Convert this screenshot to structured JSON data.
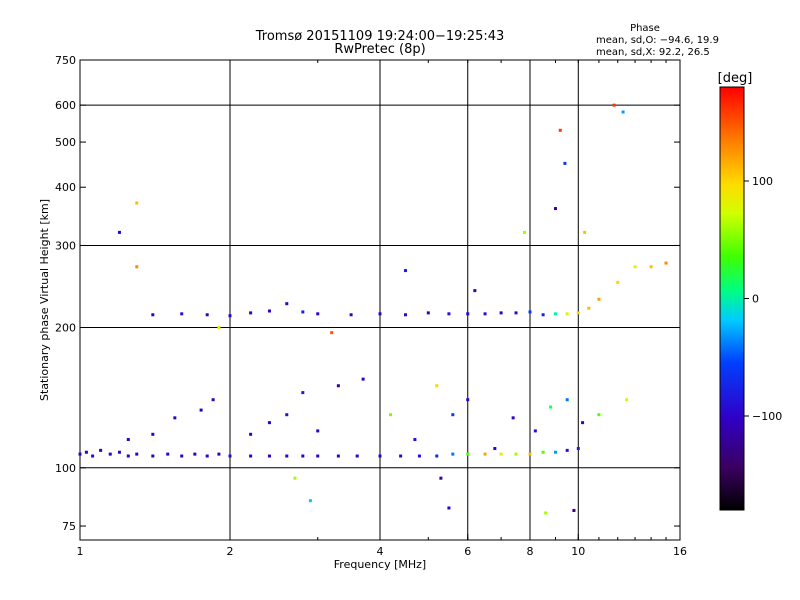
{
  "chart_data": {
    "type": "scatter",
    "title_line1": "Tromsø 20151109 19:24:00−19:25:43",
    "title_line2": "RwPretec (8p)",
    "xlabel": "Frequency [MHz]",
    "ylabel": "Stationary phase Virtual Height [km]",
    "x_scale": "log",
    "y_scale": "log",
    "xlim": [
      1,
      16
    ],
    "ylim": [
      70,
      750
    ],
    "x_ticks": [
      1,
      2,
      4,
      6,
      8,
      10,
      16
    ],
    "x_tick_labels": [
      "1",
      "2",
      "4",
      "6",
      "8",
      "10",
      "16"
    ],
    "x_grid": [
      2,
      4,
      6,
      8,
      10
    ],
    "y_ticks": [
      75,
      100,
      200,
      300,
      400,
      500,
      600,
      750
    ],
    "y_tick_labels": [
      "75",
      "100",
      "200",
      "300",
      "400",
      "500",
      "600",
      "750"
    ],
    "y_grid": [
      100,
      200,
      300,
      600
    ],
    "grid": true,
    "phase_info": {
      "heading": "Phase",
      "line_o": "mean, sd,O: −94.6, 19.9",
      "line_x": "mean, sd,X:  92.2, 26.5"
    },
    "colorbar": {
      "label": "[deg]",
      "range": [
        -180,
        180
      ],
      "ticks": [
        100,
        0,
        -100
      ],
      "tick_labels": [
        "100",
        "0",
        "−100"
      ]
    },
    "series": [
      {
        "description": "E-layer trace",
        "points": [
          [
            1.0,
            107,
            -100
          ],
          [
            1.03,
            108,
            -105
          ],
          [
            1.06,
            106,
            -95
          ],
          [
            1.1,
            109,
            -110
          ],
          [
            1.15,
            107,
            -100
          ],
          [
            1.2,
            108,
            -98
          ],
          [
            1.25,
            106,
            -102
          ],
          [
            1.3,
            107,
            -100
          ],
          [
            1.4,
            106,
            -105
          ],
          [
            1.5,
            107,
            -100
          ],
          [
            1.6,
            106,
            -98
          ],
          [
            1.7,
            107,
            -102
          ],
          [
            1.8,
            106,
            -100
          ],
          [
            1.9,
            107,
            -100
          ],
          [
            2.0,
            106,
            -95
          ],
          [
            2.2,
            106,
            -100
          ],
          [
            2.4,
            106,
            -102
          ],
          [
            2.6,
            106,
            -98
          ],
          [
            2.8,
            106,
            -100
          ],
          [
            3.0,
            106,
            -100
          ],
          [
            3.3,
            106,
            -98
          ],
          [
            3.6,
            106,
            -102
          ],
          [
            4.0,
            106,
            -100
          ],
          [
            4.4,
            106,
            -95
          ],
          [
            4.8,
            106,
            -90
          ],
          [
            5.2,
            106,
            -70
          ],
          [
            5.6,
            107,
            -40
          ],
          [
            6.0,
            107,
            40
          ],
          [
            6.5,
            107,
            120
          ],
          [
            7.0,
            107,
            90
          ],
          [
            7.5,
            107,
            60
          ],
          [
            8.0,
            107,
            110
          ],
          [
            8.5,
            108,
            40
          ],
          [
            9.0,
            108,
            -30
          ],
          [
            9.5,
            109,
            -90
          ],
          [
            10.0,
            110,
            -80
          ]
        ]
      },
      {
        "description": "Lower F trace",
        "points": [
          [
            1.25,
            115,
            -100
          ],
          [
            1.4,
            118,
            -100
          ],
          [
            1.55,
            128,
            -100
          ],
          [
            1.75,
            133,
            -110
          ],
          [
            1.85,
            140,
            -100
          ],
          [
            2.2,
            118,
            -100
          ],
          [
            2.4,
            125,
            -100
          ],
          [
            2.6,
            130,
            -90
          ],
          [
            2.8,
            145,
            -80
          ],
          [
            3.0,
            120,
            -100
          ],
          [
            3.3,
            150,
            -120
          ],
          [
            3.7,
            155,
            -100
          ],
          [
            4.2,
            130,
            50
          ],
          [
            4.7,
            115,
            -90
          ],
          [
            5.2,
            150,
            100
          ],
          [
            5.6,
            130,
            -60
          ],
          [
            6.0,
            140,
            -100
          ],
          [
            6.8,
            110,
            -100
          ],
          [
            7.4,
            128,
            -100
          ],
          [
            8.2,
            120,
            -90
          ],
          [
            8.8,
            135,
            20
          ],
          [
            9.5,
            140,
            -40
          ],
          [
            10.2,
            125,
            -100
          ],
          [
            11.0,
            130,
            40
          ],
          [
            12.5,
            140,
            70
          ]
        ]
      },
      {
        "description": "F2 trace",
        "points": [
          [
            1.4,
            213,
            -100
          ],
          [
            1.6,
            214,
            -90
          ],
          [
            1.8,
            213,
            -100
          ],
          [
            2.0,
            212,
            -100
          ],
          [
            2.2,
            215,
            -100
          ],
          [
            2.4,
            217,
            -100
          ],
          [
            2.6,
            225,
            -100
          ],
          [
            2.8,
            216,
            -80
          ],
          [
            3.0,
            214,
            -100
          ],
          [
            3.5,
            213,
            -95
          ],
          [
            4.0,
            214,
            -100
          ],
          [
            4.5,
            213,
            -98
          ],
          [
            5.0,
            215,
            -110
          ],
          [
            5.5,
            214,
            -90
          ],
          [
            6.0,
            214,
            -100
          ],
          [
            6.5,
            214,
            -90
          ],
          [
            7.0,
            215,
            -100
          ],
          [
            7.5,
            215,
            -95
          ],
          [
            8.0,
            216,
            -60
          ],
          [
            8.5,
            213,
            -80
          ],
          [
            9.0,
            214,
            0
          ],
          [
            9.5,
            214,
            80
          ],
          [
            10.0,
            215,
            100
          ],
          [
            10.5,
            220,
            110
          ],
          [
            11.0,
            230,
            120
          ],
          [
            12.0,
            250,
            100
          ],
          [
            13.0,
            270,
            80
          ],
          [
            14.0,
            270,
            110
          ],
          [
            15.0,
            275,
            130
          ]
        ]
      },
      {
        "description": "Scattered echoes",
        "points": [
          [
            1.2,
            320,
            -100
          ],
          [
            1.3,
            370,
            110
          ],
          [
            1.3,
            270,
            130
          ],
          [
            1.9,
            200,
            80
          ],
          [
            2.7,
            95,
            60
          ],
          [
            2.9,
            85,
            -20
          ],
          [
            3.2,
            195,
            150
          ],
          [
            4.5,
            265,
            -80
          ],
          [
            5.3,
            95,
            -120
          ],
          [
            5.5,
            82,
            -100
          ],
          [
            6.2,
            240,
            -110
          ],
          [
            7.8,
            320,
            60
          ],
          [
            8.6,
            80,
            60
          ],
          [
            9.0,
            360,
            -120
          ],
          [
            9.2,
            530,
            160
          ],
          [
            9.4,
            450,
            -60
          ],
          [
            9.8,
            81,
            -130
          ],
          [
            10.3,
            320,
            110
          ],
          [
            11.8,
            600,
            160
          ],
          [
            12.3,
            580,
            -30
          ]
        ]
      }
    ]
  }
}
